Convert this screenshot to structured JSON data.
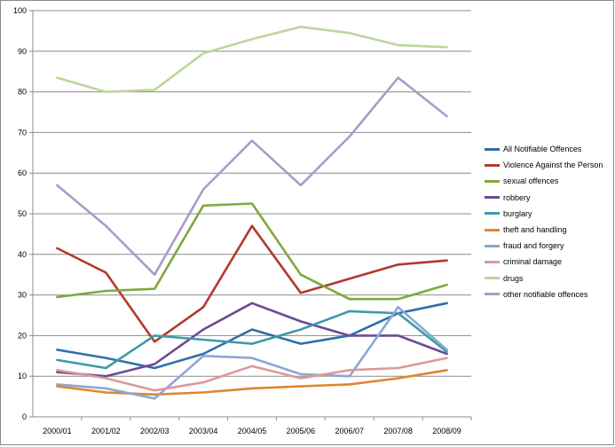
{
  "chart_data": {
    "type": "line",
    "categories": [
      "2000/01",
      "2001/02",
      "2002/03",
      "2003/04",
      "2004/05",
      "2005/06",
      "2006/07",
      "2007/08",
      "2008/09"
    ],
    "ylim": [
      0,
      100
    ],
    "yticks": [
      0,
      10,
      20,
      30,
      40,
      50,
      60,
      70,
      80,
      90,
      100
    ],
    "grid": true,
    "legend_position": "right",
    "series": [
      {
        "name": "All Notifiable Offences",
        "color": "#2f6fa8",
        "values": [
          16.5,
          14.5,
          12,
          15.5,
          21.5,
          18,
          20,
          25.5,
          28
        ]
      },
      {
        "name": "Violence Against the Person",
        "color": "#b2392f",
        "values": [
          41.5,
          35.5,
          18.5,
          27,
          47,
          30.5,
          34,
          37.5,
          38.5
        ]
      },
      {
        "name": "sexual offences",
        "color": "#7fa83f",
        "values": [
          29.5,
          31,
          31.5,
          52,
          52.5,
          35,
          29,
          29,
          32.5
        ]
      },
      {
        "name": "robbery",
        "color": "#6b4a91",
        "values": [
          11,
          10,
          13,
          21.5,
          28,
          23.5,
          20,
          20,
          15.5
        ]
      },
      {
        "name": "burglary",
        "color": "#3f9aaa",
        "values": [
          14,
          12,
          20,
          19,
          18,
          21.5,
          26,
          25.5,
          16
        ]
      },
      {
        "name": "theft and handling",
        "color": "#e0862d",
        "values": [
          7.5,
          6,
          5.5,
          6,
          7,
          7.5,
          8,
          9.5,
          11.5
        ]
      },
      {
        "name": "fraud and forgery",
        "color": "#8ba7d3",
        "values": [
          8,
          7,
          4.5,
          15,
          14.5,
          10.5,
          10,
          27,
          16.5
        ]
      },
      {
        "name": "criminal damage",
        "color": "#d99a9a",
        "values": [
          11.5,
          9.5,
          6.5,
          8.5,
          12.5,
          9.5,
          11.5,
          12,
          14.5
        ]
      },
      {
        "name": "drugs",
        "color": "#bcd79a",
        "values": [
          83.5,
          80,
          80.5,
          89.5,
          93,
          96,
          94.5,
          91.5,
          91
        ]
      },
      {
        "name": "other notifiable offences",
        "color": "#ab9bc6",
        "values": [
          57,
          47,
          35,
          56,
          68,
          57,
          69,
          83.5,
          74
        ]
      }
    ]
  }
}
